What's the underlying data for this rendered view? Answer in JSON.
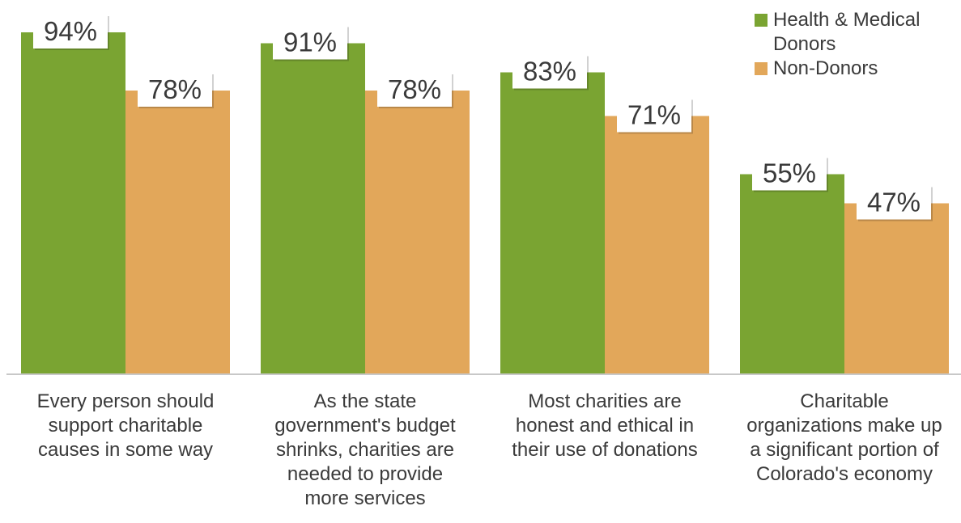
{
  "chart_data": {
    "type": "bar",
    "title": "",
    "xlabel": "",
    "ylabel": "",
    "ylim": [
      0,
      100
    ],
    "grid": false,
    "legend_position": "top-right",
    "categories": [
      "Every person should support charitable causes in some way",
      "As the state government's budget shrinks, charities are needed to provide more services",
      "Most charities are honest and ethical in their use of donations",
      "Charitable organizations make up a significant portion of Colorado's economy"
    ],
    "category_lines": [
      [
        "Every person should",
        "support charitable",
        "causes in some way"
      ],
      [
        "As the state",
        "government's budget",
        "shrinks, charities are",
        "needed to provide",
        "more services"
      ],
      [
        "Most charities are",
        "honest and ethical in",
        "their use of donations"
      ],
      [
        "Charitable",
        "organizations make up",
        "a significant portion of",
        "Colorado's economy"
      ]
    ],
    "series": [
      {
        "name": "Health & Medical Donors",
        "values": [
          94,
          91,
          83,
          55
        ],
        "labels": [
          "94%",
          "91%",
          "83%",
          "55%"
        ],
        "color": "#7aa432"
      },
      {
        "name": "Non-Donors",
        "values": [
          78,
          78,
          71,
          47
        ],
        "labels": [
          "78%",
          "78%",
          "71%",
          "47%"
        ],
        "color": "#e2a75a"
      }
    ],
    "legend_lines": [
      [
        "Health & Medical",
        "Donors"
      ],
      [
        "Non-Donors"
      ]
    ]
  }
}
